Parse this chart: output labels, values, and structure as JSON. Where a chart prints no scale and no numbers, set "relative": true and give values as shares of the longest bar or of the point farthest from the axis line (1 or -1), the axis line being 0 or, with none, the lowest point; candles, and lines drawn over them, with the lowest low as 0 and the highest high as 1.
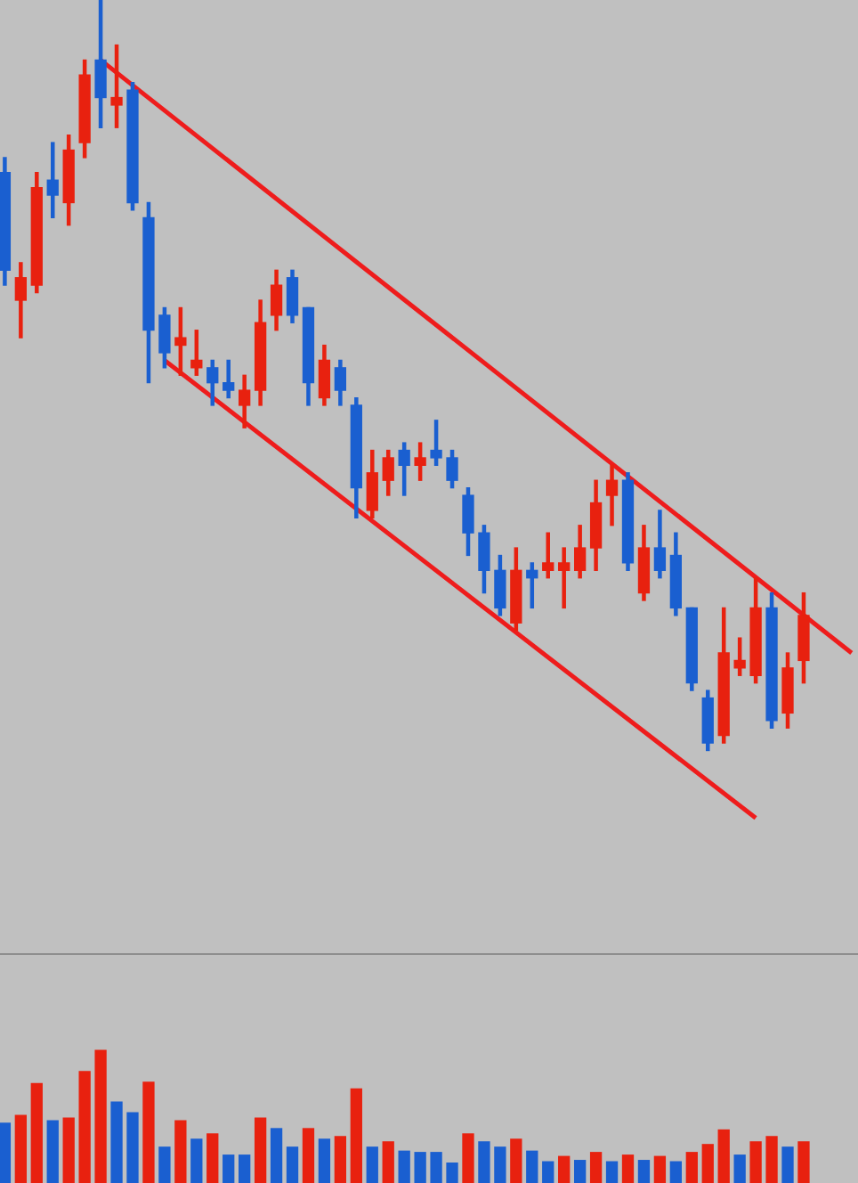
{
  "chart_data": [
    {
      "type": "candlestick",
      "relative": true,
      "categories": [
        null,
        null,
        null,
        null,
        null,
        null,
        null,
        null,
        null,
        null,
        null,
        null,
        null,
        null,
        null,
        null,
        null,
        null,
        null,
        null,
        null,
        null,
        null,
        null,
        null,
        null,
        null,
        null,
        null,
        null,
        null,
        null,
        null,
        null,
        null,
        null,
        null,
        null,
        null,
        null,
        null,
        null,
        null,
        null,
        null,
        null,
        null,
        null,
        null,
        null,
        null,
        null,
        null,
        null
      ],
      "ohlc": [
        [
          0.77,
          0.79,
          0.62,
          0.64
        ],
        [
          0.6,
          0.65,
          0.55,
          0.63
        ],
        [
          0.62,
          0.77,
          0.61,
          0.75
        ],
        [
          0.76,
          0.81,
          0.71,
          0.74
        ],
        [
          0.73,
          0.82,
          0.7,
          0.8
        ],
        [
          0.81,
          0.92,
          0.79,
          0.9
        ],
        [
          0.92,
          1,
          0.83,
          0.87
        ],
        [
          0.86,
          0.94,
          0.83,
          0.87
        ],
        [
          0.88,
          0.89,
          0.72,
          0.73
        ],
        [
          0.71,
          0.73,
          0.49,
          0.56
        ],
        [
          0.58,
          0.59,
          0.51,
          0.53
        ],
        [
          0.54,
          0.59,
          0.5,
          0.55
        ],
        [
          0.51,
          0.56,
          0.5,
          0.52
        ],
        [
          0.51,
          0.52,
          0.46,
          0.49
        ],
        [
          0.49,
          0.52,
          0.47,
          0.48
        ],
        [
          0.46,
          0.5,
          0.43,
          0.48
        ],
        [
          0.48,
          0.6,
          0.46,
          0.57
        ],
        [
          0.58,
          0.64,
          0.56,
          0.62
        ],
        [
          0.63,
          0.64,
          0.57,
          0.58
        ],
        [
          0.59,
          0.59,
          0.46,
          0.49
        ],
        [
          0.47,
          0.54,
          0.46,
          0.52
        ],
        [
          0.51,
          0.52,
          0.46,
          0.48
        ],
        [
          0.46,
          0.47,
          0.31,
          0.35
        ],
        [
          0.32,
          0.4,
          0.31,
          0.37
        ],
        [
          0.36,
          0.4,
          0.34,
          0.39
        ],
        [
          0.4,
          0.41,
          0.34,
          0.38
        ],
        [
          0.38,
          0.41,
          0.36,
          0.39
        ],
        [
          0.4,
          0.44,
          0.38,
          0.39
        ],
        [
          0.39,
          0.4,
          0.35,
          0.36
        ],
        [
          0.34,
          0.35,
          0.26,
          0.29
        ],
        [
          0.29,
          0.3,
          0.21,
          0.24
        ],
        [
          0.24,
          0.26,
          0.18,
          0.19
        ],
        [
          0.17,
          0.27,
          0.16,
          0.24
        ],
        [
          0.24,
          0.25,
          0.19,
          0.23
        ],
        [
          0.24,
          0.29,
          0.23,
          0.25
        ],
        [
          0.24,
          0.27,
          0.19,
          0.25
        ],
        [
          0.24,
          0.3,
          0.23,
          0.27
        ],
        [
          0.27,
          0.36,
          0.24,
          0.33
        ],
        [
          0.34,
          0.38,
          0.3,
          0.36
        ],
        [
          0.36,
          0.37,
          0.24,
          0.25
        ],
        [
          0.21,
          0.3,
          0.2,
          0.27
        ],
        [
          0.27,
          0.32,
          0.23,
          0.24
        ],
        [
          0.26,
          0.29,
          0.18,
          0.19
        ],
        [
          0.19,
          0.19,
          0.08,
          0.09
        ],
        [
          0.07,
          0.08,
          0,
          0.01
        ],
        [
          0.02,
          0.19,
          0.01,
          0.13
        ],
        [
          0.11,
          0.15,
          0.1,
          0.12
        ],
        [
          0.1,
          0.23,
          0.09,
          0.19
        ],
        [
          0.19,
          0.21,
          0.03,
          0.04
        ],
        [
          0.05,
          0.13,
          0.03,
          0.11
        ],
        [
          0.12,
          0.21,
          0.09,
          0.18
        ],
        null,
        null,
        null
      ],
      "colors": [
        "#1a5fd0",
        "#e8210f",
        "#e8210f",
        "#1a5fd0",
        "#e8210f",
        "#e8210f",
        "#1a5fd0",
        "#e8210f",
        "#1a5fd0",
        "#1a5fd0",
        "#1a5fd0",
        "#e8210f",
        "#e8210f",
        "#1a5fd0",
        "#1a5fd0",
        "#e8210f",
        "#e8210f",
        "#e8210f",
        "#1a5fd0",
        "#1a5fd0",
        "#e8210f",
        "#1a5fd0",
        "#1a5fd0",
        "#e8210f",
        "#e8210f",
        "#1a5fd0",
        "#e8210f",
        "#1a5fd0",
        "#1a5fd0",
        "#1a5fd0",
        "#1a5fd0",
        "#1a5fd0",
        "#e8210f",
        "#1a5fd0",
        "#e8210f",
        "#e8210f",
        "#e8210f",
        "#e8210f",
        "#e8210f",
        "#1a5fd0",
        "#e8210f",
        "#1a5fd0",
        "#1a5fd0",
        "#1a5fd0",
        "#1a5fd0",
        "#e8210f",
        "#e8210f",
        "#e8210f",
        "#1a5fd0",
        "#e8210f",
        "#e8210f",
        null,
        null,
        null
      ],
      "series": [
        {
          "type": "line",
          "color": "#ee1c1c",
          "values": [
            null,
            null,
            null,
            null,
            null,
            null,
            0.92,
            null,
            null,
            null,
            null,
            null,
            null,
            null,
            null,
            null,
            null,
            null,
            null,
            null,
            null,
            null,
            null,
            null,
            null,
            null,
            null,
            null,
            null,
            null,
            null,
            null,
            null,
            null,
            null,
            null,
            null,
            null,
            null,
            null,
            null,
            null,
            null,
            null,
            null,
            null,
            null,
            null,
            null,
            null,
            null,
            null,
            null,
            0.13
          ]
        },
        {
          "type": "line",
          "color": "#ee1c1c",
          "values": [
            null,
            null,
            null,
            null,
            null,
            null,
            null,
            null,
            null,
            null,
            0.52,
            null,
            null,
            null,
            null,
            null,
            null,
            null,
            null,
            null,
            null,
            null,
            null,
            null,
            null,
            null,
            null,
            null,
            null,
            null,
            null,
            null,
            null,
            null,
            null,
            null,
            null,
            null,
            null,
            null,
            null,
            null,
            null,
            null,
            null,
            null,
            null,
            -0.09,
            null,
            null,
            null,
            null,
            null,
            null
          ]
        }
      ]
    },
    {
      "type": "bar",
      "relative": true,
      "categories": [
        null,
        null,
        null,
        null,
        null,
        null,
        null,
        null,
        null,
        null,
        null,
        null,
        null,
        null,
        null,
        null,
        null,
        null,
        null,
        null,
        null,
        null,
        null,
        null,
        null,
        null,
        null,
        null,
        null,
        null,
        null,
        null,
        null,
        null,
        null,
        null,
        null,
        null,
        null,
        null,
        null,
        null,
        null,
        null,
        null,
        null,
        null,
        null,
        null,
        null,
        null
      ],
      "values": [
        0.45,
        0.51,
        0.75,
        0.47,
        0.49,
        0.84,
        1,
        0.61,
        0.53,
        0.76,
        0.27,
        0.47,
        0.33,
        0.37,
        0.21,
        0.21,
        0.49,
        0.41,
        0.27,
        0.41,
        0.33,
        0.35,
        0.71,
        0.27,
        0.31,
        0.24,
        0.23,
        0.23,
        0.15,
        0.37,
        0.31,
        0.27,
        0.33,
        0.24,
        0.16,
        0.2,
        0.17,
        0.23,
        0.16,
        0.21,
        0.17,
        0.2,
        0.16,
        0.23,
        0.29,
        0.4,
        0.21,
        0.31,
        0.35,
        0.27,
        0.31
      ],
      "colors": [
        "#1a5fd0",
        "#e8210f",
        "#e8210f",
        "#1a5fd0",
        "#e8210f",
        "#e8210f",
        "#e8210f",
        "#1a5fd0",
        "#1a5fd0",
        "#e8210f",
        "#1a5fd0",
        "#e8210f",
        "#1a5fd0",
        "#e8210f",
        "#1a5fd0",
        "#1a5fd0",
        "#e8210f",
        "#1a5fd0",
        "#1a5fd0",
        "#e8210f",
        "#1a5fd0",
        "#e8210f",
        "#e8210f",
        "#1a5fd0",
        "#e8210f",
        "#1a5fd0",
        "#1a5fd0",
        "#1a5fd0",
        "#1a5fd0",
        "#e8210f",
        "#1a5fd0",
        "#1a5fd0",
        "#e8210f",
        "#1a5fd0",
        "#1a5fd0",
        "#e8210f",
        "#1a5fd0",
        "#e8210f",
        "#1a5fd0",
        "#e8210f",
        "#1a5fd0",
        "#e8210f",
        "#1a5fd0",
        "#e8210f",
        "#e8210f",
        "#e8210f",
        "#1a5fd0",
        "#e8210f",
        "#e8210f",
        "#1a5fd0",
        "#e8210f"
      ]
    }
  ]
}
